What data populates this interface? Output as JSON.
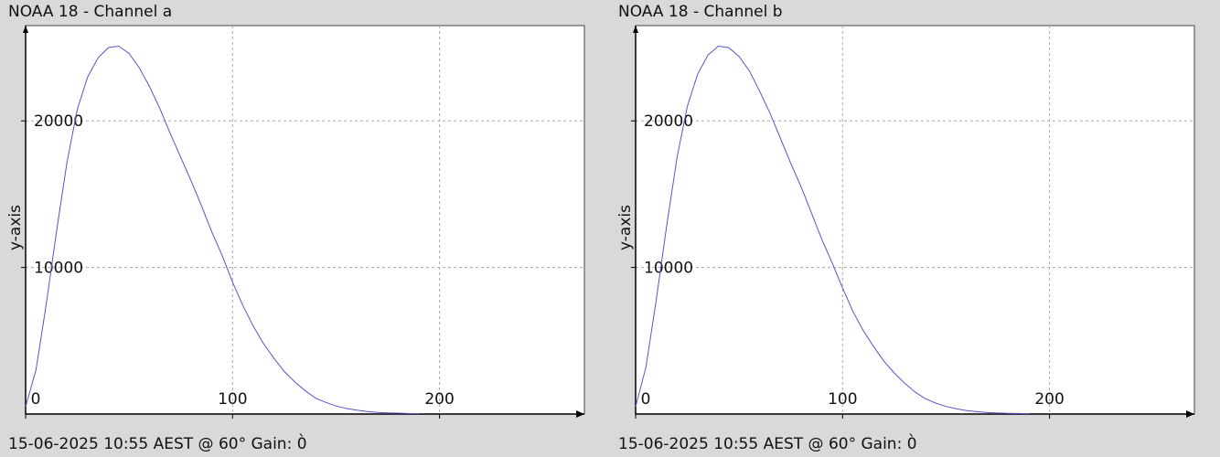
{
  "chart_data": [
    {
      "type": "line",
      "title": "NOAA 18 - Channel a",
      "footer": "15-06-2025 10:55 AEST @ 60° Gain: 0̀",
      "ylabel": "y-axis",
      "xlabel": "",
      "xlim": [
        0,
        270
      ],
      "ylim": [
        0,
        26500
      ],
      "x_ticks": [
        "0",
        "100",
        "200"
      ],
      "y_ticks": [
        "10000",
        "20000"
      ],
      "grid": true,
      "line_color": "#5555cc",
      "series": [
        {
          "x": [
            0,
            5,
            10,
            15,
            20,
            25,
            30,
            35,
            40,
            45,
            50,
            55,
            60,
            65,
            70,
            75,
            80,
            85,
            90,
            95,
            100,
            105,
            110,
            115,
            120,
            125,
            130,
            135,
            140,
            145,
            150,
            155,
            160,
            165,
            170,
            175,
            180,
            185,
            190
          ],
          "y": [
            500,
            3000,
            7500,
            12500,
            17200,
            20800,
            23000,
            24300,
            25000,
            25100,
            24600,
            23600,
            22300,
            20800,
            19100,
            17500,
            15900,
            14200,
            12400,
            10800,
            9000,
            7400,
            6000,
            4800,
            3800,
            2900,
            2200,
            1600,
            1100,
            800,
            550,
            380,
            260,
            170,
            110,
            80,
            60,
            40,
            30
          ]
        }
      ]
    },
    {
      "type": "line",
      "title": "NOAA 18 - Channel b",
      "footer": "15-06-2025 10:55 AEST @ 60° Gain: 0̀",
      "ylabel": "y-axis",
      "xlabel": "",
      "xlim": [
        0,
        270
      ],
      "ylim": [
        0,
        26500
      ],
      "x_ticks": [
        "0",
        "100",
        "200"
      ],
      "y_ticks": [
        "10000",
        "20000"
      ],
      "grid": true,
      "line_color": "#5555cc",
      "series": [
        {
          "x": [
            0,
            5,
            10,
            15,
            20,
            25,
            30,
            35,
            40,
            45,
            50,
            55,
            60,
            65,
            70,
            75,
            80,
            85,
            90,
            95,
            100,
            105,
            110,
            115,
            120,
            125,
            130,
            135,
            140,
            145,
            150,
            155,
            160,
            165,
            170,
            175,
            180,
            185,
            190
          ],
          "y": [
            500,
            3200,
            7800,
            12800,
            17500,
            21000,
            23200,
            24500,
            25100,
            25000,
            24400,
            23400,
            22000,
            20500,
            18800,
            17100,
            15500,
            13700,
            11900,
            10300,
            8600,
            7000,
            5700,
            4600,
            3600,
            2800,
            2100,
            1500,
            1050,
            750,
            520,
            360,
            240,
            160,
            100,
            70,
            50,
            35,
            25
          ]
        }
      ]
    }
  ]
}
